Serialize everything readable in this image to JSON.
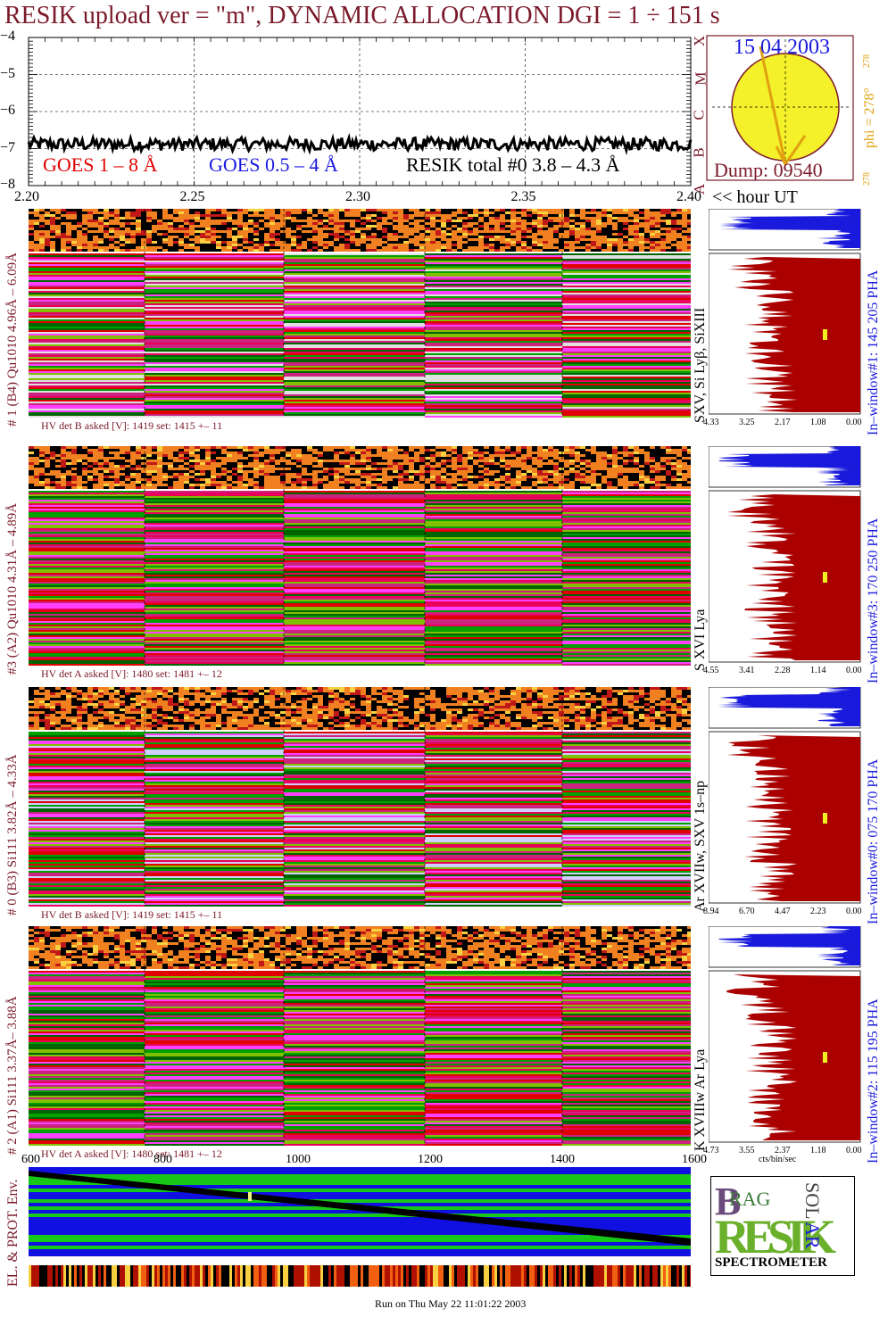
{
  "title": "RESIK upload ver = \"m\", DYNAMIC ALLOCATION  DGI =   1 ÷ 151 s",
  "top_plot": {
    "y_ticks": [
      "−4",
      "−5",
      "−6",
      "−7",
      "−8"
    ],
    "x_ticks": [
      "2.20",
      "2.25",
      "2.30",
      "2.35",
      "2.40"
    ],
    "x_unit": "<< hour UT",
    "legend": [
      {
        "label": "GOES 1 – 8 Å",
        "color": "#e00000"
      },
      {
        "label": "GOES 0.5 – 4 Å",
        "color": "#1a1adc"
      },
      {
        "label": "RESIK total #0  3.8 – 4.3 Å",
        "color": "#000000"
      }
    ],
    "goes_classes": [
      "X",
      "M",
      "C",
      "B",
      "A"
    ]
  },
  "sun_panel": {
    "date": "15 04 2003",
    "dump": "Dump: 09540",
    "phi": "phi = 278°",
    "phi_small": "278",
    "phi_small2": "278"
  },
  "channels": [
    {
      "left_label": "# 1 (B4) Qu1010 4.96Å – 6.09Å",
      "line_label": "SXV, Si Lyβ, SiXIII",
      "window_label": "In–window#1:  145 205 PHA",
      "hv": "HV det B asked [V]:  1419 set:  1415 +–   11",
      "axis": [
        "4.33",
        "3.25",
        "2.17",
        "1.08",
        "0.00"
      ]
    },
    {
      "left_label": "#3 (A2) Qu1010  4.31Å – 4.89Å",
      "line_label": "S XVI Lya",
      "window_label": "In–window#3:  170 250 PHA",
      "hv": "HV det A asked [V]:  1480 set:  1481 +–   12",
      "axis": [
        "4.55",
        "3.41",
        "2.28",
        "1.14",
        "0.00"
      ]
    },
    {
      "left_label": "# 0 (B3) Si111  3.82Å – 4.33Å",
      "line_label": "Ar XVIIw,  SXV 1s–np",
      "window_label": "In–window#0:  075 170 PHA",
      "hv": "HV det B asked [V]:  1419 set:  1415 +–   11",
      "axis": [
        "8.94",
        "6.70",
        "4.47",
        "2.23",
        "0.00"
      ]
    },
    {
      "left_label": "# 2 (A1) Si111  3.37Å–  3.88Å",
      "line_label": "K XVIIIw  Ar Lya",
      "window_label": "In–window#2:  115 195 PHA",
      "hv": "HV det A asked [V]:  1480 set:  1481 +–   12",
      "axis": [
        "4.73",
        "3.55",
        "2.37",
        "1.18",
        "0.00"
      ],
      "axis_unit": "cts/bin/sec"
    }
  ],
  "bottom_axis": [
    "600",
    "800",
    "1000",
    "1200",
    "1400",
    "1600"
  ],
  "env_label": "EL. & PROT. Env.",
  "logo": {
    "b": "B",
    "rag": "RAG",
    "resik": "RESIK",
    "sol": "SOL",
    "ar": "AR",
    "spectrometer": "SPECTROMETER"
  },
  "footer": "Run on Thu May 22 11:01:22 2003",
  "chart_data": {
    "type": "line",
    "x": [
      2.2,
      2.25,
      2.3,
      2.35,
      2.4
    ],
    "xlim": [
      2.2,
      2.4
    ],
    "ylim": [
      -8,
      -4
    ],
    "series": [
      {
        "name": "RESIK total #0  3.8 – 4.3 Å",
        "values": [
          -6.85,
          -6.9,
          -6.85,
          -6.9,
          -6.85
        ]
      }
    ]
  }
}
